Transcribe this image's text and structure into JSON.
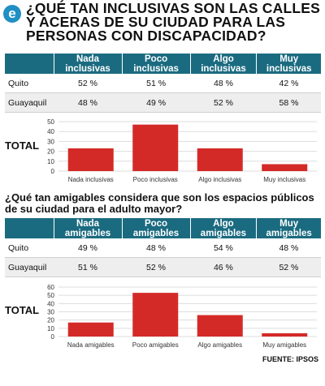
{
  "logo": {
    "letter": "e"
  },
  "title": "¿QUÉ TAN INCLUSIVAS SON LAS CALLES Y ACERAS DE SU CIUDAD PARA LAS PERSONAS CON DISCAPACIDAD?",
  "table1": {
    "headers": [
      "",
      "Nada inclusivas",
      "Poco inclusivas",
      "Algo inclusivas",
      "Muy inclusivas"
    ],
    "rows": [
      {
        "city": "Quito",
        "values": [
          "52 %",
          "51 %",
          "48 %",
          "42 %"
        ]
      },
      {
        "city": "Guayaquil",
        "values": [
          "48 %",
          "49 %",
          "52 %",
          "58 %"
        ]
      }
    ]
  },
  "total_label": "TOTAL",
  "subtitle": "¿Qué tan amigables considera que son los espacios públicos de su ciudad para el adulto mayor?",
  "table2": {
    "headers": [
      "",
      "Nada amigables",
      "Poco amigables",
      "Algo amigables",
      "Muy amigables"
    ],
    "rows": [
      {
        "city": "Quito",
        "values": [
          "49 %",
          "48 %",
          "54 %",
          "48 %"
        ]
      },
      {
        "city": "Guayaquil",
        "values": [
          "51 %",
          "52 %",
          "46 %",
          "52 %"
        ]
      }
    ]
  },
  "source": "FUENTE: IPSOS",
  "colors": {
    "header": "#1b6b80",
    "bar": "#d42a27",
    "accent": "#1f8fc4"
  },
  "chart_data": [
    {
      "type": "bar",
      "categories": [
        "Nada inclusivas",
        "Poco inclusivas",
        "Algo inclusivas",
        "Muy inclusivas"
      ],
      "values": [
        23,
        47,
        23,
        7
      ],
      "ylim": [
        0,
        50
      ],
      "yticks": [
        0,
        10,
        20,
        30,
        40,
        50
      ],
      "grid": true
    },
    {
      "type": "bar",
      "categories": [
        "Nada amigables",
        "Poco amigables",
        "Algo amigables",
        "Muy amigables"
      ],
      "values": [
        17,
        53,
        26,
        4
      ],
      "ylim": [
        0,
        60
      ],
      "yticks": [
        0,
        10,
        20,
        30,
        40,
        50,
        60
      ],
      "grid": true
    }
  ]
}
